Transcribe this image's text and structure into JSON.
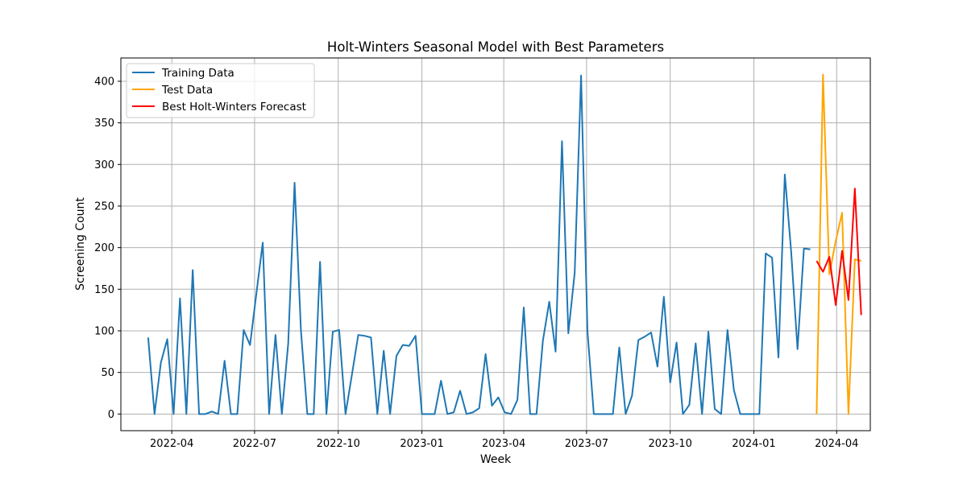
{
  "chart_data": {
    "type": "line",
    "title": "Holt-Winters Seasonal Model with Best Parameters",
    "xlabel": "Week",
    "ylabel": "Screening Count",
    "xlim": [
      "2022-02-04",
      "2024-05-08"
    ],
    "ylim": [
      -20,
      428
    ],
    "grid": true,
    "legend_position": "top-left",
    "x_ticks": [
      {
        "date": "2022-04-01",
        "label": "2022-04"
      },
      {
        "date": "2022-07-01",
        "label": "2022-07"
      },
      {
        "date": "2022-10-01",
        "label": "2022-10"
      },
      {
        "date": "2023-01-01",
        "label": "2023-01"
      },
      {
        "date": "2023-04-01",
        "label": "2023-04"
      },
      {
        "date": "2023-07-01",
        "label": "2023-07"
      },
      {
        "date": "2023-10-01",
        "label": "2023-10"
      },
      {
        "date": "2024-01-01",
        "label": "2024-01"
      },
      {
        "date": "2024-04-01",
        "label": "2024-04"
      }
    ],
    "y_ticks": [
      0,
      50,
      100,
      150,
      200,
      250,
      300,
      350,
      400
    ],
    "series": [
      {
        "name": "Training Data",
        "color": "#1f77b4",
        "points": [
          [
            "2022-03-06",
            92
          ],
          [
            "2022-03-13",
            0
          ],
          [
            "2022-03-20",
            62
          ],
          [
            "2022-03-27",
            90
          ],
          [
            "2022-04-03",
            0
          ],
          [
            "2022-04-10",
            139
          ],
          [
            "2022-04-17",
            0
          ],
          [
            "2022-04-24",
            173
          ],
          [
            "2022-05-01",
            0
          ],
          [
            "2022-05-08",
            0
          ],
          [
            "2022-05-15",
            3
          ],
          [
            "2022-05-22",
            0
          ],
          [
            "2022-05-29",
            64
          ],
          [
            "2022-06-05",
            0
          ],
          [
            "2022-06-12",
            0
          ],
          [
            "2022-06-19",
            101
          ],
          [
            "2022-06-26",
            83
          ],
          [
            "2022-07-03",
            145
          ],
          [
            "2022-07-10",
            206
          ],
          [
            "2022-07-17",
            0
          ],
          [
            "2022-07-24",
            95
          ],
          [
            "2022-07-31",
            0
          ],
          [
            "2022-08-07",
            85
          ],
          [
            "2022-08-14",
            278
          ],
          [
            "2022-08-21",
            100
          ],
          [
            "2022-08-28",
            0
          ],
          [
            "2022-09-04",
            0
          ],
          [
            "2022-09-11",
            183
          ],
          [
            "2022-09-18",
            0
          ],
          [
            "2022-09-25",
            99
          ],
          [
            "2022-10-02",
            101
          ],
          [
            "2022-10-09",
            0
          ],
          [
            "2022-10-16",
            47
          ],
          [
            "2022-10-23",
            95
          ],
          [
            "2022-10-30",
            94
          ],
          [
            "2022-11-06",
            92
          ],
          [
            "2022-11-13",
            0
          ],
          [
            "2022-11-20",
            76
          ],
          [
            "2022-11-27",
            0
          ],
          [
            "2022-12-04",
            70
          ],
          [
            "2022-12-11",
            83
          ],
          [
            "2022-12-18",
            82
          ],
          [
            "2022-12-25",
            94
          ],
          [
            "2023-01-01",
            0
          ],
          [
            "2023-01-08",
            0
          ],
          [
            "2023-01-15",
            0
          ],
          [
            "2023-01-22",
            40
          ],
          [
            "2023-01-29",
            0
          ],
          [
            "2023-02-05",
            2
          ],
          [
            "2023-02-12",
            28
          ],
          [
            "2023-02-19",
            0
          ],
          [
            "2023-02-26",
            2
          ],
          [
            "2023-03-05",
            7
          ],
          [
            "2023-03-12",
            72
          ],
          [
            "2023-03-19",
            10
          ],
          [
            "2023-03-26",
            20
          ],
          [
            "2023-04-02",
            2
          ],
          [
            "2023-04-09",
            0
          ],
          [
            "2023-04-16",
            17
          ],
          [
            "2023-04-23",
            128
          ],
          [
            "2023-04-30",
            0
          ],
          [
            "2023-05-07",
            0
          ],
          [
            "2023-05-14",
            88
          ],
          [
            "2023-05-21",
            135
          ],
          [
            "2023-05-28",
            75
          ],
          [
            "2023-06-04",
            328
          ],
          [
            "2023-06-11",
            97
          ],
          [
            "2023-06-18",
            170
          ],
          [
            "2023-06-25",
            407
          ],
          [
            "2023-07-02",
            100
          ],
          [
            "2023-07-09",
            0
          ],
          [
            "2023-07-16",
            0
          ],
          [
            "2023-07-23",
            0
          ],
          [
            "2023-07-30",
            0
          ],
          [
            "2023-08-06",
            80
          ],
          [
            "2023-08-13",
            0
          ],
          [
            "2023-08-20",
            22
          ],
          [
            "2023-08-27",
            89
          ],
          [
            "2023-09-03",
            93
          ],
          [
            "2023-09-10",
            98
          ],
          [
            "2023-09-17",
            57
          ],
          [
            "2023-09-24",
            141
          ],
          [
            "2023-10-01",
            38
          ],
          [
            "2023-10-08",
            86
          ],
          [
            "2023-10-15",
            0
          ],
          [
            "2023-10-22",
            11
          ],
          [
            "2023-10-29",
            85
          ],
          [
            "2023-11-05",
            0
          ],
          [
            "2023-11-12",
            99
          ],
          [
            "2023-11-19",
            6
          ],
          [
            "2023-11-26",
            0
          ],
          [
            "2023-12-03",
            101
          ],
          [
            "2023-12-10",
            29
          ],
          [
            "2023-12-17",
            0
          ],
          [
            "2023-12-24",
            0
          ],
          [
            "2023-12-31",
            0
          ],
          [
            "2024-01-07",
            0
          ],
          [
            "2024-01-14",
            193
          ],
          [
            "2024-01-21",
            188
          ],
          [
            "2024-01-28",
            68
          ],
          [
            "2024-02-04",
            288
          ],
          [
            "2024-02-11",
            195
          ],
          [
            "2024-02-18",
            78
          ],
          [
            "2024-02-25",
            199
          ],
          [
            "2024-03-03",
            198
          ]
        ]
      },
      {
        "name": "Test Data",
        "color": "#ffa500",
        "points": [
          [
            "2024-03-10",
            0
          ],
          [
            "2024-03-17",
            408
          ],
          [
            "2024-03-24",
            168
          ],
          [
            "2024-03-31",
            208
          ],
          [
            "2024-04-07",
            242
          ],
          [
            "2024-04-14",
            0
          ],
          [
            "2024-04-21",
            186
          ],
          [
            "2024-04-28",
            184
          ]
        ]
      },
      {
        "name": "Best Holt-Winters Forecast",
        "color": "#ff0000",
        "points": [
          [
            "2024-03-10",
            184
          ],
          [
            "2024-03-17",
            171
          ],
          [
            "2024-03-24",
            189
          ],
          [
            "2024-03-31",
            131
          ],
          [
            "2024-04-07",
            196
          ],
          [
            "2024-04-14",
            137
          ],
          [
            "2024-04-21",
            271
          ],
          [
            "2024-04-28",
            119
          ]
        ]
      }
    ]
  }
}
